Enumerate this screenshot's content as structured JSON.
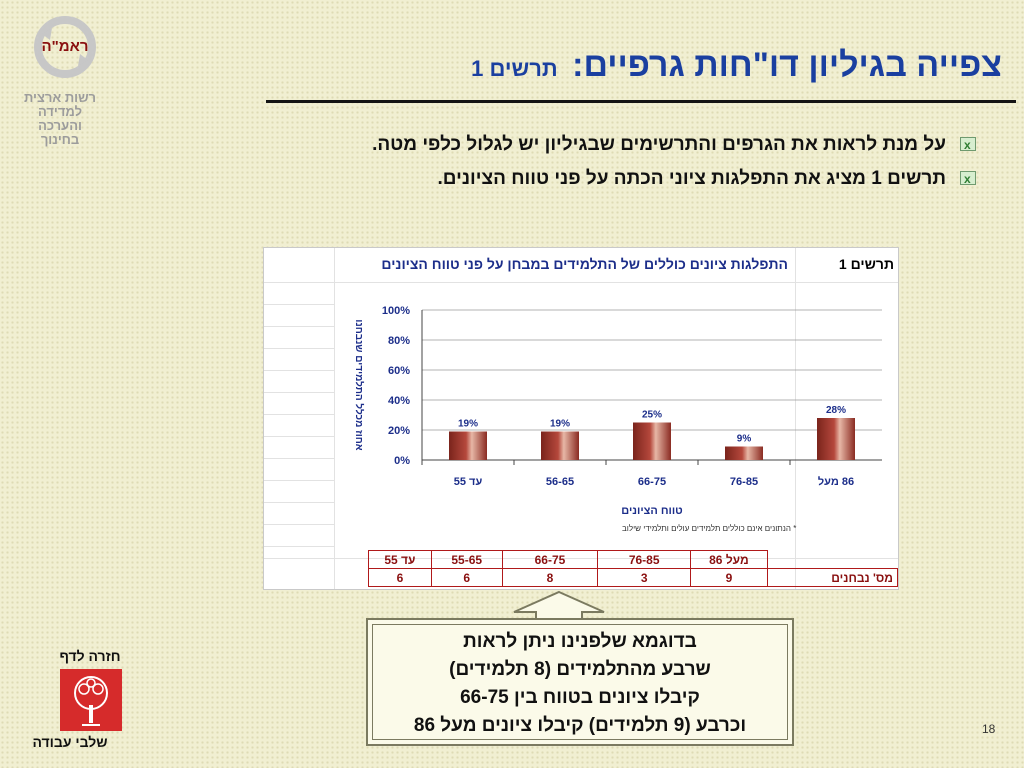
{
  "logo": {
    "text": "ראמ\"ה"
  },
  "org": {
    "lines": [
      "רשות ארצית",
      "למדידה",
      "והערכה",
      "בחינוך"
    ]
  },
  "title": {
    "main": "צפייה בגיליון דו\"חות גרפיים:",
    "sub": "תרשים 1"
  },
  "bullets": [
    "על מנת לראות את הגרפים והתרשימים שבגיליון יש לגלול כלפי מטה.",
    "תרשים 1 מציג את התפלגות ציוני הכתה על פני טווח הציונים."
  ],
  "sheet": {
    "chart_label": "תרשים 1",
    "chart_title": "התפלגות ציונים כוללים של התלמידים במבחן על פני טווח הציונים",
    "note": "*    הנתונים אינם כוללים תלמידים עולים ותלמידי שילוב",
    "table": {
      "ranges": [
        "עד 55",
        "55-65",
        "66-75",
        "76-85",
        "מעל 86"
      ],
      "counts": [
        "6",
        "6",
        "8",
        "3",
        "9"
      ],
      "counts_label": "מס' נבחנים"
    }
  },
  "chart_data": {
    "type": "bar",
    "categories": [
      "עד 55",
      "56-65",
      "66-75",
      "76-85",
      "86 מעל"
    ],
    "values": [
      19,
      19,
      25,
      9,
      28
    ],
    "value_labels": [
      "19%",
      "19%",
      "25%",
      "9%",
      "28%"
    ],
    "ylabel": "אחוז מכלל התלמידים שנבחנו",
    "xlabel": "טווח הציונים",
    "ylim": [
      0,
      100
    ],
    "yticks": [
      "0%",
      "20%",
      "40%",
      "60%",
      "80%",
      "100%"
    ],
    "grid": true,
    "bar_color": "#b5483c"
  },
  "callout": {
    "lines": [
      "בדוגמא שלפנינו ניתן לראות",
      "שרבע מהתלמידים (8 תלמידים)",
      "קיבלו ציונים בטווח בין 66-75",
      "וכרבע (9 תלמידים) קיבלו ציונים מעל 86"
    ]
  },
  "side": {
    "top": "חזרה לדף",
    "bottom": "שלבי עבודה"
  },
  "page_number": "18",
  "colors": {
    "title": "#1a3fa0",
    "accent": "#8a1010"
  }
}
